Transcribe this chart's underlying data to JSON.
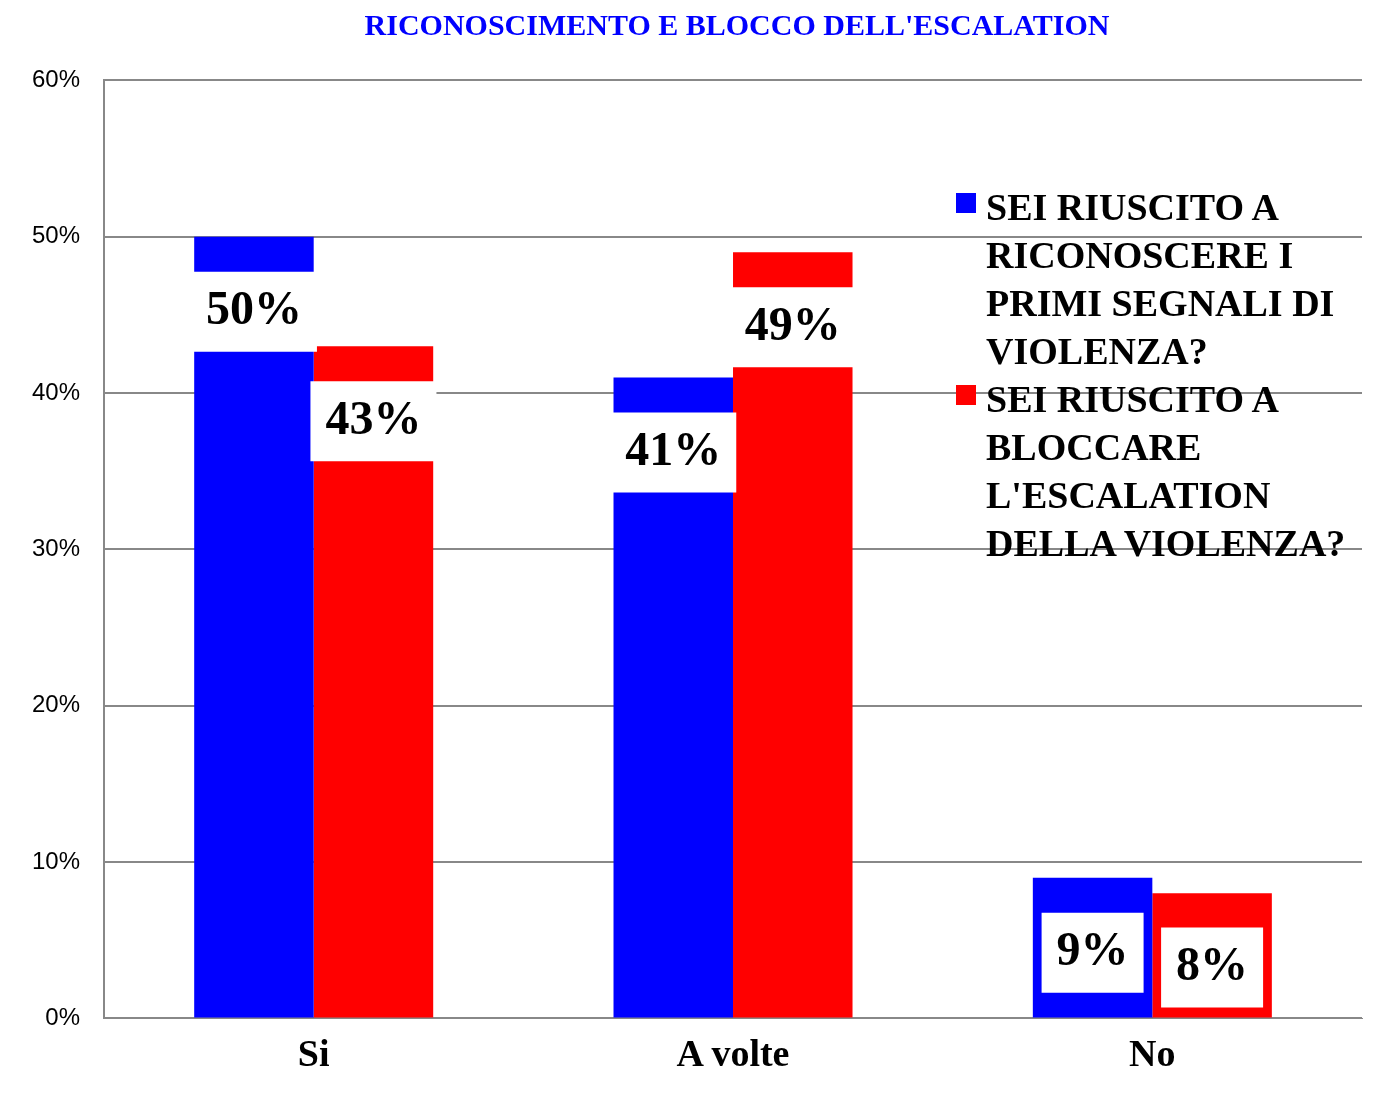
{
  "chart_data": {
    "type": "bar",
    "title": "RICONOSCIMENTO E BLOCCO DELL'ESCALATION",
    "categories": [
      "Si",
      "A volte",
      "No"
    ],
    "series": [
      {
        "name": "SEI RIUSCITO A RICONOSCERE I PRIMI SEGNALI DI VIOLENZA?",
        "color": "#0000ff",
        "values": [
          50,
          41,
          9
        ],
        "value_labels": [
          "50%",
          "41%",
          "9%"
        ]
      },
      {
        "name": "SEI RIUSCITO A BLOCCARE L'ESCALATION DELLA VIOLENZA?",
        "color": "#ff0000",
        "values": [
          43,
          49,
          8
        ],
        "value_labels": [
          "43%",
          "49%",
          "8%"
        ]
      }
    ],
    "ylim": [
      0,
      60
    ],
    "yticks": [
      {
        "value": 0,
        "label": "0%"
      },
      {
        "value": 10,
        "label": "10%"
      },
      {
        "value": 20,
        "label": "20%"
      },
      {
        "value": 30,
        "label": "30%"
      },
      {
        "value": 40,
        "label": "40%"
      },
      {
        "value": 50,
        "label": "50%"
      },
      {
        "value": 60,
        "label": "60%"
      }
    ],
    "grid": "y",
    "legend": "top right"
  }
}
